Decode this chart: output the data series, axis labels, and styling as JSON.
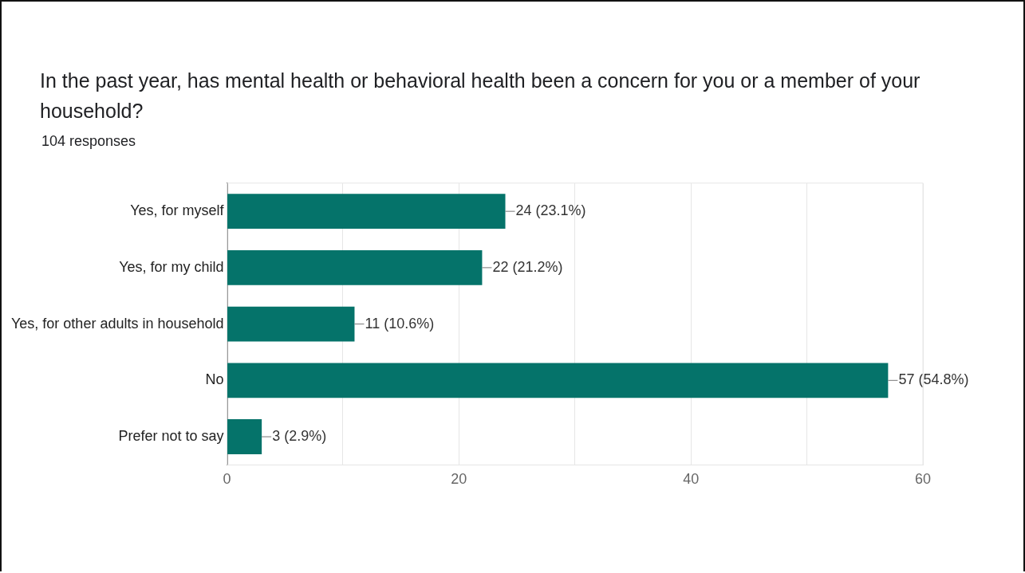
{
  "chart_data": {
    "type": "bar",
    "orientation": "horizontal",
    "title": "In the past year, has mental health or behavioral health been a concern for you or a member of your household?",
    "subtitle": "104 responses",
    "categories": [
      "Yes, for myself",
      "Yes, for my child",
      "Yes, for other adults in household",
      "No",
      "Prefer not to say"
    ],
    "values": [
      24,
      22,
      11,
      57,
      3
    ],
    "value_labels": [
      "24 (23.1%)",
      "22 (21.2%)",
      "11 (10.6%)",
      "57 (54.8%)",
      "3 (2.9%)"
    ],
    "color": "#05736a",
    "xlim": [
      0,
      60
    ],
    "xticks": [
      0,
      {
        "value": 10,
        "label": null
      },
      20,
      {
        "value": 30,
        "label": null
      },
      40,
      {
        "value": 50,
        "label": null
      },
      60
    ],
    "grid": "x",
    "legend": false
  }
}
